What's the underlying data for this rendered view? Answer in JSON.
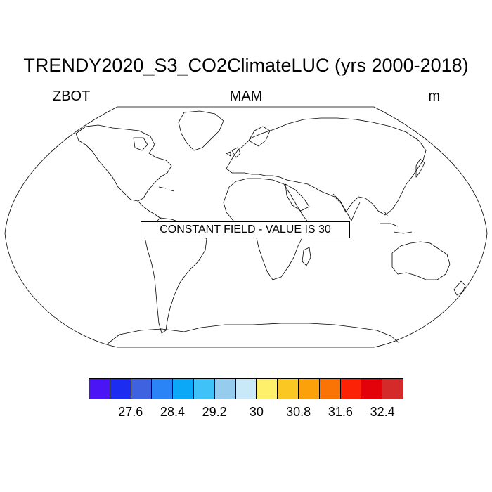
{
  "title": "TRENDY2020_S3_CO2ClimateLUC (yrs 2000-2018)",
  "variable": "ZBOT",
  "season": "MAM",
  "units": "m",
  "notice": "CONSTANT FIELD - VALUE IS 30",
  "projection": "Robinson",
  "colorbar": {
    "colors": [
      "#4a14f5",
      "#1c2cf0",
      "#3e62e0",
      "#2a84f5",
      "#0aa8f7",
      "#3ec2f7",
      "#96ccee",
      "#c9e8f8",
      "#fef06a",
      "#fbc823",
      "#fca10a",
      "#fa7305",
      "#fb2205",
      "#e3020a",
      "#d52a2a"
    ],
    "tick_labels": [
      "27.6",
      "28.4",
      "29.2",
      "30",
      "30.8",
      "31.6",
      "32.4"
    ]
  }
}
